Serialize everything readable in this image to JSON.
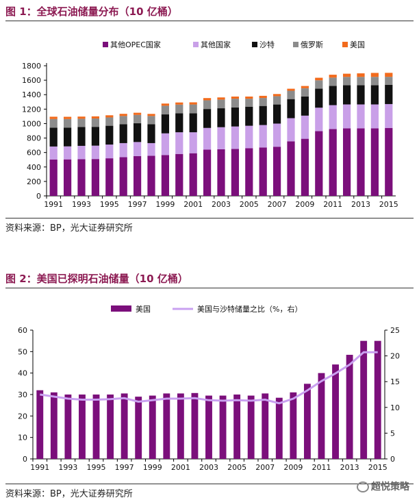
{
  "chart1_title": "图 1：全球石油储量分布（10 亿桶）",
  "chart2_title": "图 2：美国已探明石油储量（10 亿桶）",
  "source1": "资料来源：BP，光大证券研究所",
  "source2": "资料来源：BP，光大证券研究所",
  "watermark": "超悦策略",
  "chart_data": [
    {
      "type": "bar",
      "stacked": true,
      "categories": [
        "1991",
        "1992",
        "1993",
        "1994",
        "1995",
        "1996",
        "1997",
        "1998",
        "1999",
        "2000",
        "2001",
        "2002",
        "2003",
        "2004",
        "2005",
        "2006",
        "2007",
        "2008",
        "2009",
        "2010",
        "2011",
        "2012",
        "2013",
        "2014",
        "2015"
      ],
      "tick_labels": [
        "1991",
        "1993",
        "1995",
        "1997",
        "1999",
        "2001",
        "2003",
        "2005",
        "2007",
        "2009",
        "2011",
        "2013",
        "2015"
      ],
      "series": [
        {
          "name": "其他OPEC国家",
          "color": "#7b0f7b",
          "values": [
            503,
            505,
            507,
            510,
            520,
            535,
            550,
            555,
            565,
            580,
            590,
            640,
            645,
            650,
            660,
            670,
            680,
            755,
            790,
            895,
            925,
            935,
            935,
            935,
            940
          ]
        },
        {
          "name": "其他国家",
          "color": "#c9a0e8",
          "values": [
            180,
            180,
            185,
            185,
            190,
            195,
            195,
            175,
            300,
            300,
            290,
            300,
            305,
            310,
            310,
            310,
            320,
            320,
            320,
            325,
            330,
            330,
            330,
            330,
            330
          ]
        },
        {
          "name": "沙特",
          "color": "#111111",
          "values": [
            260,
            260,
            260,
            260,
            260,
            260,
            260,
            260,
            262,
            262,
            262,
            262,
            262,
            264,
            264,
            264,
            264,
            264,
            264,
            264,
            266,
            266,
            266,
            266,
            267
          ]
        },
        {
          "name": "俄罗斯",
          "color": "#8c8c8c",
          "values": [
            120,
            118,
            115,
            115,
            115,
            115,
            115,
            115,
            120,
            120,
            122,
            120,
            120,
            120,
            110,
            110,
            115,
            115,
            115,
            115,
            115,
            115,
            115,
            115,
            110
          ]
        },
        {
          "name": "美国",
          "color": "#f26b1d",
          "values": [
            32,
            31,
            30,
            30,
            30,
            30,
            30,
            29,
            30,
            30,
            30,
            31,
            30,
            30,
            30,
            30,
            30,
            28,
            31,
            35,
            40,
            44,
            49,
            55,
            55
          ]
        }
      ],
      "ylim": [
        0,
        1800
      ],
      "yticks": [
        0,
        200,
        400,
        600,
        800,
        1000,
        1200,
        1400,
        1600,
        1800
      ]
    },
    {
      "type": "bar",
      "categories": [
        "1991",
        "1992",
        "1993",
        "1994",
        "1995",
        "1996",
        "1997",
        "1998",
        "1999",
        "2000",
        "2001",
        "2002",
        "2003",
        "2004",
        "2005",
        "2006",
        "2007",
        "2008",
        "2009",
        "2010",
        "2011",
        "2012",
        "2013",
        "2014",
        "2015"
      ],
      "tick_labels": [
        "1991",
        "1993",
        "1995",
        "1997",
        "1999",
        "2001",
        "2003",
        "2005",
        "2007",
        "2009",
        "2011",
        "2013",
        "2015"
      ],
      "series": [
        {
          "name": "美国",
          "color": "#7b0f7b",
          "axis": "left",
          "type": "bar",
          "values": [
            32,
            31,
            30,
            30,
            30,
            30,
            30.5,
            29,
            29.5,
            30.5,
            30.5,
            30.7,
            29.5,
            29.5,
            30,
            29.5,
            30.5,
            28.5,
            31,
            35,
            40,
            44,
            48.5,
            55,
            55
          ]
        },
        {
          "name": "美国与沙特储量之比（%，右）",
          "color": "#c9a0f0",
          "axis": "right",
          "type": "line",
          "values": [
            12.5,
            12.1,
            11.7,
            11.5,
            11.5,
            11.6,
            11.8,
            11.1,
            11.4,
            11.7,
            11.7,
            11.8,
            11.4,
            11.3,
            11.4,
            11.3,
            11.5,
            10.8,
            11.7,
            13.3,
            15.1,
            16.6,
            18.3,
            20.7,
            20.7
          ]
        }
      ],
      "ylim": [
        0,
        60
      ],
      "yticks": [
        0,
        10,
        20,
        30,
        40,
        50,
        60
      ],
      "y2lim": [
        0,
        25
      ],
      "y2ticks": [
        0,
        5,
        10,
        15,
        20,
        25
      ]
    }
  ]
}
